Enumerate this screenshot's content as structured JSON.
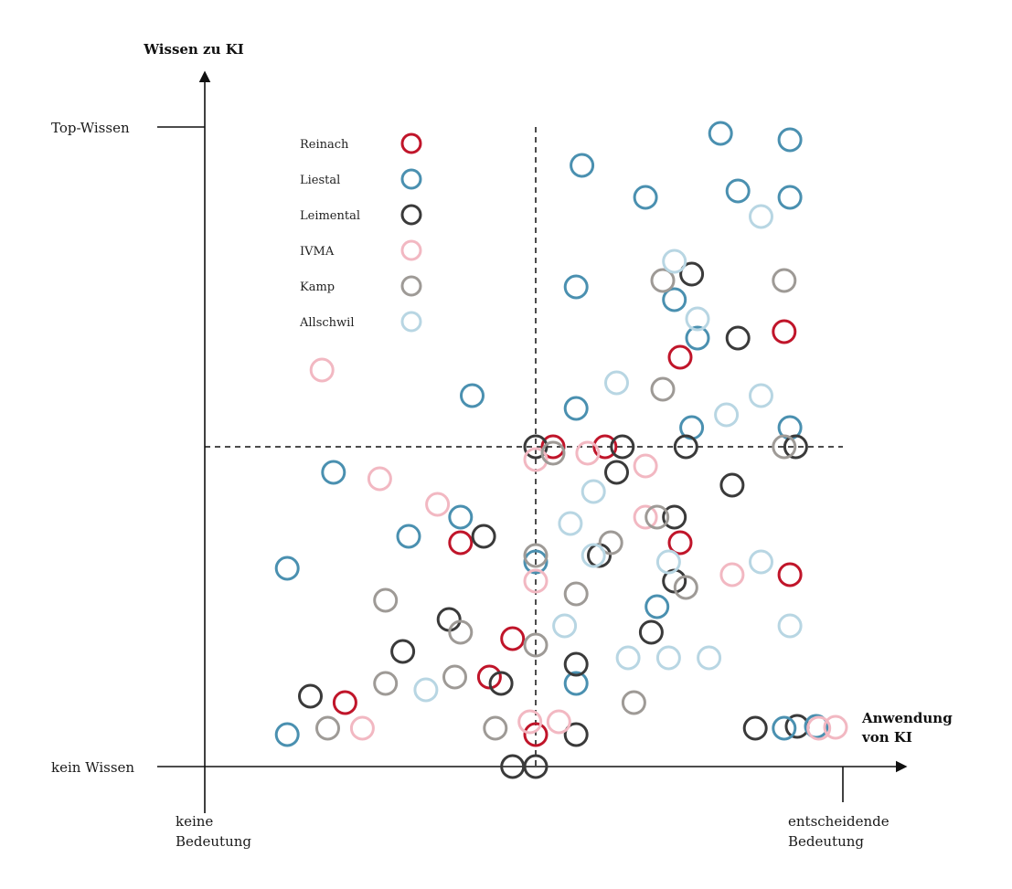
{
  "chart_data": {
    "type": "scatter",
    "title": "",
    "ylabel": "Wissen zu KI",
    "xlabel": "Anwendung von KI",
    "xlabel_lines": [
      "Anwendung",
      "von KI"
    ],
    "x_tick_labels": {
      "min": [
        "keine",
        "Bedeutung"
      ],
      "max": [
        "entscheidende",
        "Bedeutung"
      ]
    },
    "y_tick_labels": {
      "min": "kein Wissen",
      "max": "Top-Wissen"
    },
    "xlim": [
      0,
      100
    ],
    "ylim": [
      0,
      100
    ],
    "grid": false,
    "quadrant_divider": {
      "x": 50,
      "y": 50,
      "style": "dashed"
    },
    "legend": {
      "position": "top-left-inside"
    },
    "series": [
      {
        "name": "Reinach",
        "color": "#c0152a",
        "points": [
          [
            53,
            50
          ],
          [
            62,
            50
          ],
          [
            37,
            35
          ],
          [
            46,
            20
          ],
          [
            42,
            14
          ],
          [
            17,
            10
          ],
          [
            50,
            5
          ],
          [
            75,
            35
          ],
          [
            94,
            30
          ],
          [
            75,
            64
          ],
          [
            93,
            68
          ]
        ]
      },
      {
        "name": "Liestal",
        "color": "#4a90b0",
        "points": [
          [
            58,
            94
          ],
          [
            82,
            99
          ],
          [
            94,
            98
          ],
          [
            69,
            89
          ],
          [
            85,
            90
          ],
          [
            94,
            89
          ],
          [
            57,
            75
          ],
          [
            74,
            73
          ],
          [
            78,
            67
          ],
          [
            39,
            58
          ],
          [
            57,
            56
          ],
          [
            77,
            53
          ],
          [
            94,
            53
          ],
          [
            15,
            46
          ],
          [
            37,
            39
          ],
          [
            28,
            36
          ],
          [
            50,
            32
          ],
          [
            7,
            31
          ],
          [
            71,
            25
          ],
          [
            57,
            13
          ],
          [
            7,
            5
          ],
          [
            93,
            6
          ]
        ]
      },
      {
        "name": "Leimental",
        "color": "#3a3a3a",
        "points": [
          [
            77,
            77
          ],
          [
            85,
            67
          ],
          [
            50,
            50
          ],
          [
            65,
            50
          ],
          [
            76,
            50
          ],
          [
            95,
            50
          ],
          [
            64,
            46
          ],
          [
            84,
            44
          ],
          [
            74,
            39
          ],
          [
            41,
            36
          ],
          [
            61,
            33
          ],
          [
            74,
            29
          ],
          [
            35,
            23
          ],
          [
            70,
            21
          ],
          [
            27,
            18
          ],
          [
            57,
            16
          ],
          [
            44,
            13
          ],
          [
            11,
            11
          ],
          [
            57,
            5
          ],
          [
            46,
            0
          ],
          [
            50,
            0
          ],
          [
            88,
            6
          ]
        ]
      },
      {
        "name": "IVMA",
        "color": "#f2b8c2",
        "points": [
          [
            13,
            62
          ],
          [
            50,
            48
          ],
          [
            59,
            49
          ],
          [
            23,
            45
          ],
          [
            69,
            47
          ],
          [
            33,
            41
          ],
          [
            69,
            39
          ],
          [
            50,
            29
          ],
          [
            84,
            30
          ],
          [
            49,
            7
          ],
          [
            54,
            7
          ],
          [
            20,
            6
          ],
          [
            99,
            6
          ]
        ]
      },
      {
        "name": "Kamp",
        "color": "#9e9a96",
        "points": [
          [
            72,
            76
          ],
          [
            93,
            76
          ],
          [
            72,
            59
          ],
          [
            53,
            49
          ],
          [
            93,
            50
          ],
          [
            71,
            39
          ],
          [
            63,
            35
          ],
          [
            50,
            33
          ],
          [
            76,
            28
          ],
          [
            57,
            27
          ],
          [
            24,
            26
          ],
          [
            37,
            21
          ],
          [
            50,
            19
          ],
          [
            24,
            13
          ],
          [
            36,
            14
          ],
          [
            67,
            10
          ],
          [
            14,
            6
          ],
          [
            43,
            6
          ]
        ]
      },
      {
        "name": "Allschwil",
        "color": "#b8d6e3",
        "points": [
          [
            89,
            86
          ],
          [
            74,
            79
          ],
          [
            78,
            70
          ],
          [
            64,
            60
          ],
          [
            89,
            58
          ],
          [
            83,
            55
          ],
          [
            60,
            43
          ],
          [
            56,
            38
          ],
          [
            60,
            33
          ],
          [
            73,
            32
          ],
          [
            89,
            32
          ],
          [
            55,
            22
          ],
          [
            94,
            22
          ],
          [
            66,
            17
          ],
          [
            73,
            17
          ],
          [
            80,
            17
          ],
          [
            31,
            12
          ]
        ]
      }
    ]
  }
}
